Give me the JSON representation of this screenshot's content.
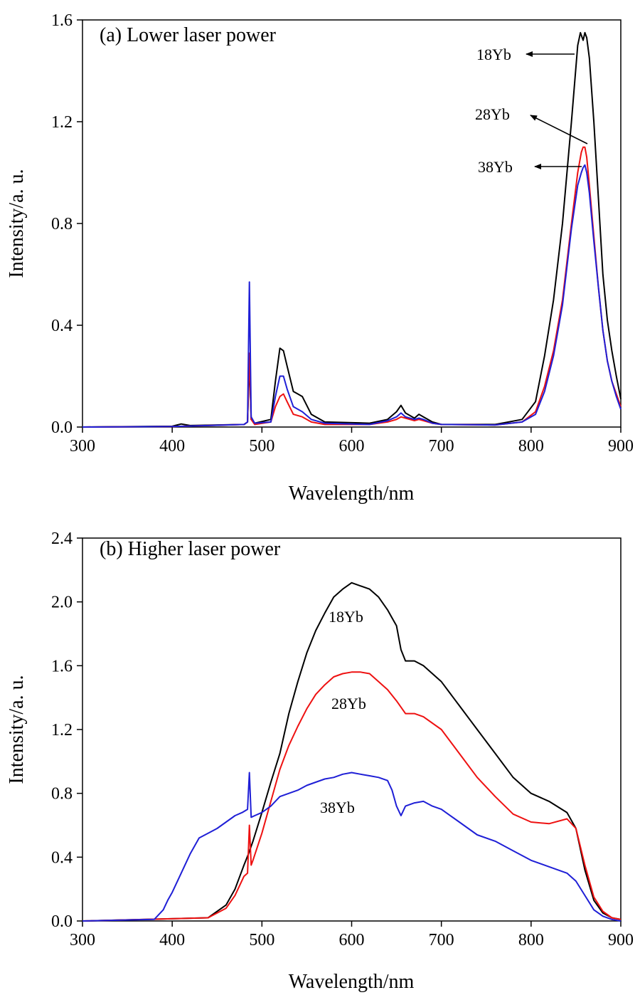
{
  "chart_data": [
    {
      "type": "line",
      "title": "(a) Lower laser power",
      "xlabel": "Wavelength/nm",
      "ylabel": "Intensity/a. u.",
      "xlim": [
        300,
        900
      ],
      "ylim": [
        0,
        1.6
      ],
      "xticks": [
        300,
        400,
        500,
        600,
        700,
        800,
        900
      ],
      "yticks": [
        0.0,
        0.4,
        0.8,
        1.2,
        1.6
      ],
      "xtick_labels": [
        "300",
        "400",
        "500",
        "600",
        "700",
        "800",
        "900"
      ],
      "ytick_labels": [
        "0.0",
        "0.4",
        "0.8",
        "1.2",
        "1.6"
      ],
      "grid": false,
      "legend": "arrow labels near 860 nm peak",
      "series": [
        {
          "name": "18Yb",
          "color": "#000000",
          "x": [
            300,
            400,
            410,
            420,
            480,
            484,
            486,
            488,
            492,
            510,
            515,
            520,
            524,
            528,
            535,
            540,
            545,
            555,
            570,
            620,
            640,
            650,
            655,
            660,
            670,
            675,
            680,
            690,
            700,
            760,
            790,
            805,
            815,
            825,
            835,
            845,
            852,
            855,
            858,
            860,
            862,
            865,
            870,
            875,
            880,
            885,
            890,
            895,
            900
          ],
          "y": [
            0.0,
            0.003,
            0.012,
            0.006,
            0.01,
            0.02,
            0.26,
            0.03,
            0.015,
            0.03,
            0.18,
            0.31,
            0.3,
            0.24,
            0.14,
            0.13,
            0.12,
            0.05,
            0.02,
            0.015,
            0.03,
            0.06,
            0.085,
            0.055,
            0.035,
            0.05,
            0.04,
            0.02,
            0.01,
            0.01,
            0.03,
            0.1,
            0.28,
            0.5,
            0.8,
            1.2,
            1.5,
            1.55,
            1.52,
            1.55,
            1.53,
            1.45,
            1.2,
            0.9,
            0.6,
            0.42,
            0.3,
            0.2,
            0.11
          ]
        },
        {
          "name": "28Yb",
          "color": "#ee1111",
          "x": [
            300,
            400,
            480,
            484,
            486,
            488,
            492,
            510,
            515,
            520,
            524,
            528,
            535,
            545,
            555,
            570,
            620,
            640,
            650,
            655,
            660,
            670,
            675,
            680,
            690,
            700,
            760,
            790,
            805,
            815,
            825,
            835,
            845,
            852,
            856,
            858,
            860,
            862,
            865,
            870,
            875,
            880,
            885,
            890,
            895,
            900
          ],
          "y": [
            0.0,
            0.002,
            0.01,
            0.02,
            0.29,
            0.03,
            0.01,
            0.02,
            0.08,
            0.12,
            0.13,
            0.1,
            0.05,
            0.04,
            0.02,
            0.01,
            0.01,
            0.02,
            0.03,
            0.04,
            0.035,
            0.025,
            0.03,
            0.025,
            0.015,
            0.01,
            0.008,
            0.02,
            0.06,
            0.16,
            0.3,
            0.5,
            0.8,
            1.0,
            1.08,
            1.1,
            1.1,
            1.06,
            0.95,
            0.75,
            0.55,
            0.38,
            0.26,
            0.18,
            0.13,
            0.08
          ]
        },
        {
          "name": "38Yb",
          "color": "#1f1fd6",
          "x": [
            300,
            400,
            480,
            484,
            486,
            488,
            492,
            510,
            515,
            520,
            524,
            528,
            535,
            545,
            555,
            570,
            620,
            640,
            650,
            655,
            660,
            670,
            675,
            680,
            690,
            700,
            760,
            790,
            805,
            815,
            825,
            835,
            845,
            852,
            856,
            858,
            860,
            862,
            865,
            870,
            875,
            880,
            885,
            890,
            895,
            900
          ],
          "y": [
            0.0,
            0.002,
            0.01,
            0.02,
            0.57,
            0.04,
            0.015,
            0.02,
            0.12,
            0.2,
            0.2,
            0.15,
            0.08,
            0.06,
            0.03,
            0.015,
            0.01,
            0.025,
            0.04,
            0.055,
            0.04,
            0.03,
            0.035,
            0.03,
            0.015,
            0.01,
            0.008,
            0.02,
            0.05,
            0.14,
            0.28,
            0.48,
            0.78,
            0.95,
            1.0,
            1.02,
            1.03,
            1.0,
            0.92,
            0.73,
            0.55,
            0.38,
            0.26,
            0.18,
            0.12,
            0.07
          ]
        }
      ]
    },
    {
      "type": "line",
      "title": "(b) Higher laser power",
      "xlabel": "Wavelength/nm",
      "ylabel": "Intensity/a. u.",
      "xlim": [
        300,
        900
      ],
      "ylim": [
        0,
        2.4
      ],
      "xticks": [
        300,
        400,
        500,
        600,
        700,
        800,
        900
      ],
      "yticks": [
        0.0,
        0.4,
        0.8,
        1.2,
        1.6,
        2.0,
        2.4
      ],
      "xtick_labels": [
        "300",
        "400",
        "500",
        "600",
        "700",
        "800",
        "900"
      ],
      "ytick_labels": [
        "0.0",
        "0.4",
        "0.8",
        "1.2",
        "1.6",
        "2.0",
        "2.4"
      ],
      "grid": false,
      "legend": "inline labels beside curves",
      "series": [
        {
          "name": "18Yb",
          "color": "#000000",
          "x": [
            300,
            440,
            460,
            470,
            480,
            485,
            490,
            500,
            510,
            520,
            530,
            540,
            550,
            560,
            570,
            580,
            590,
            600,
            610,
            620,
            630,
            640,
            645,
            650,
            655,
            660,
            670,
            680,
            700,
            720,
            740,
            760,
            780,
            800,
            820,
            840,
            850,
            860,
            870,
            880,
            890,
            900
          ],
          "y": [
            0.0,
            0.02,
            0.1,
            0.2,
            0.35,
            0.42,
            0.5,
            0.68,
            0.87,
            1.05,
            1.3,
            1.5,
            1.68,
            1.82,
            1.93,
            2.03,
            2.08,
            2.12,
            2.1,
            2.08,
            2.03,
            1.95,
            1.9,
            1.85,
            1.7,
            1.63,
            1.63,
            1.6,
            1.5,
            1.35,
            1.2,
            1.05,
            0.9,
            0.8,
            0.75,
            0.68,
            0.58,
            0.32,
            0.13,
            0.05,
            0.02,
            0.01
          ]
        },
        {
          "name": "28Yb",
          "color": "#ee1111",
          "x": [
            300,
            440,
            460,
            470,
            480,
            484,
            486,
            488,
            490,
            500,
            510,
            520,
            530,
            540,
            550,
            560,
            570,
            580,
            590,
            600,
            610,
            620,
            630,
            640,
            650,
            660,
            670,
            680,
            690,
            700,
            720,
            740,
            760,
            780,
            800,
            820,
            840,
            850,
            860,
            870,
            880,
            890,
            900
          ],
          "y": [
            0.0,
            0.02,
            0.08,
            0.16,
            0.28,
            0.3,
            0.6,
            0.35,
            0.38,
            0.55,
            0.75,
            0.95,
            1.1,
            1.22,
            1.33,
            1.42,
            1.48,
            1.53,
            1.55,
            1.56,
            1.56,
            1.55,
            1.5,
            1.45,
            1.38,
            1.3,
            1.3,
            1.28,
            1.24,
            1.2,
            1.05,
            0.9,
            0.78,
            0.67,
            0.62,
            0.61,
            0.64,
            0.58,
            0.35,
            0.15,
            0.06,
            0.02,
            0.01
          ]
        },
        {
          "name": "38Yb",
          "color": "#1f1fd6",
          "x": [
            300,
            380,
            390,
            395,
            400,
            410,
            420,
            430,
            440,
            450,
            460,
            470,
            478,
            484,
            486,
            488,
            492,
            500,
            510,
            520,
            530,
            540,
            550,
            560,
            570,
            580,
            590,
            600,
            610,
            620,
            630,
            640,
            645,
            650,
            655,
            660,
            670,
            680,
            690,
            700,
            720,
            740,
            760,
            780,
            800,
            820,
            840,
            850,
            860,
            870,
            880,
            890,
            900
          ],
          "y": [
            0.0,
            0.01,
            0.07,
            0.13,
            0.18,
            0.3,
            0.42,
            0.52,
            0.55,
            0.58,
            0.62,
            0.66,
            0.68,
            0.7,
            0.93,
            0.65,
            0.66,
            0.68,
            0.72,
            0.78,
            0.8,
            0.82,
            0.85,
            0.87,
            0.89,
            0.9,
            0.92,
            0.93,
            0.92,
            0.91,
            0.9,
            0.88,
            0.82,
            0.72,
            0.66,
            0.72,
            0.74,
            0.75,
            0.72,
            0.7,
            0.62,
            0.54,
            0.5,
            0.44,
            0.38,
            0.34,
            0.3,
            0.25,
            0.16,
            0.07,
            0.03,
            0.01,
            0.0
          ]
        }
      ]
    }
  ]
}
